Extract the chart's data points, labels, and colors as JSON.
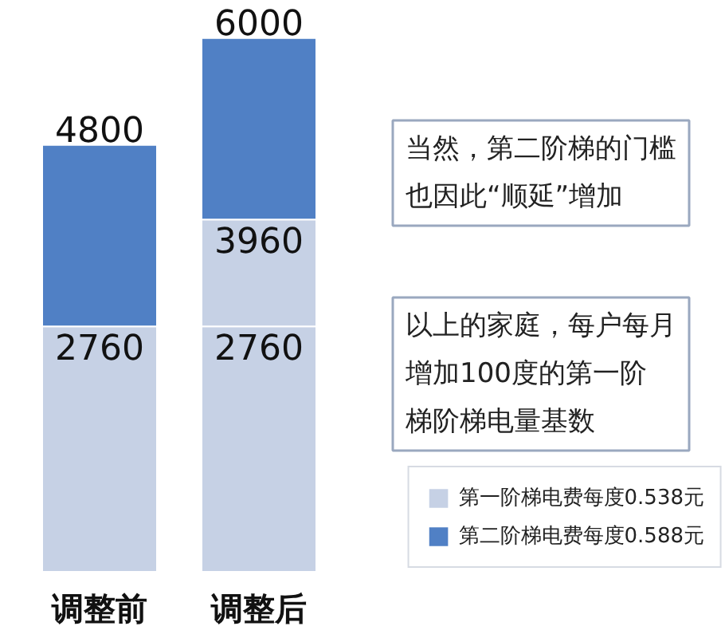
{
  "chart_data": {
    "type": "bar",
    "stacked": true,
    "categories": [
      "调整前",
      "调整后"
    ],
    "series": [
      {
        "name": "第一阶梯电费每度0.538元",
        "color": "#c6d1e5",
        "values": [
          2760,
          2760
        ],
        "value_labels": [
          "2760",
          "2760"
        ]
      },
      {
        "color": "#c6d1e5",
        "values": [
          null,
          1200
        ]
      },
      {
        "name": "第二阶梯电费每度0.588元",
        "color": "#5080c5",
        "values": [
          2040,
          2040
        ]
      }
    ],
    "totals": [
      "4800",
      "6000"
    ],
    "annotations": [
      {
        "text": "3960",
        "x": "调整后",
        "y": 3960
      },
      "当然，第二阶梯的门槛也因此“顺延”增加",
      "以上的家庭，每户每月增加100度的第一阶梯阶梯电量基数"
    ],
    "legend": "bottom right",
    "tick_labels": "x"
  }
}
